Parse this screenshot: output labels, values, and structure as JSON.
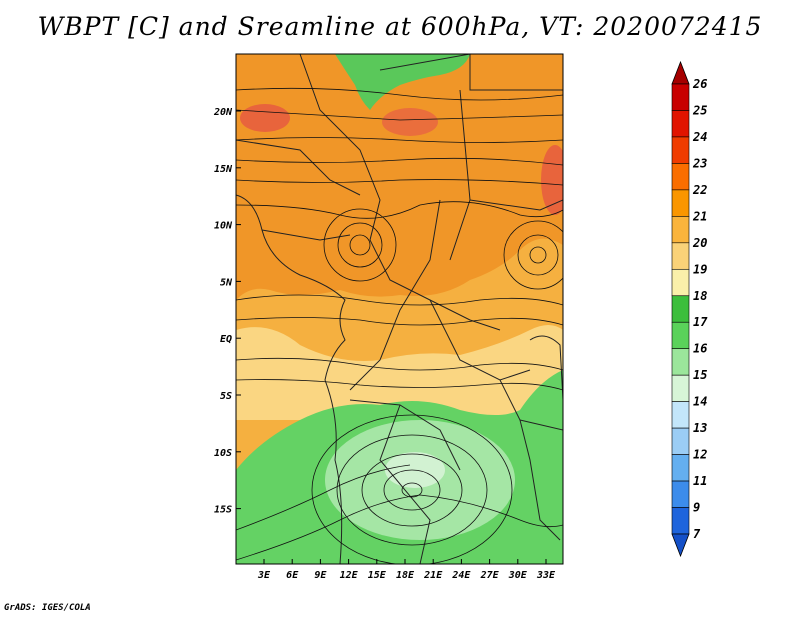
{
  "title": "WBPT [C] and Sreamline at 600hPa, VT: 2020072415",
  "credit": "GrADS: IGES/COLA",
  "map": {
    "variable": "Wet-bulb potential temperature",
    "units": "C",
    "level": "600hPa",
    "valid_time": "2020072415",
    "lon_labels": [
      "3E",
      "6E",
      "9E",
      "12E",
      "15E",
      "18E",
      "21E",
      "24E",
      "27E",
      "30E",
      "33E"
    ],
    "lat_labels": [
      "20N",
      "15N",
      "10N",
      "5N",
      "EQ",
      "5S",
      "10S",
      "15S"
    ],
    "features": [
      {
        "name": "cyclonic-circulation",
        "lon": 12,
        "lat": 8
      },
      {
        "name": "cyclonic-circulation",
        "lon": 31,
        "lat": 7
      },
      {
        "name": "anticyclonic-circulation",
        "lon": 18,
        "lat": -13
      }
    ]
  },
  "colorbar": {
    "levels": [
      "26",
      "25",
      "24",
      "23",
      "22",
      "21",
      "20",
      "19",
      "18",
      "17",
      "16",
      "15",
      "14",
      "13",
      "12",
      "11",
      "9",
      "7"
    ],
    "colors": [
      "#a50000",
      "#c80000",
      "#e11400",
      "#f03c00",
      "#fa6e00",
      "#fa9600",
      "#fab43c",
      "#fad278",
      "#faf0aa",
      "#3cbe3c",
      "#5ad25a",
      "#9be69b",
      "#d7f5d7",
      "#c3e6fa",
      "#9bcdf5",
      "#64aff0",
      "#3c8ceb",
      "#1e64dc",
      "#1450c8"
    ]
  }
}
